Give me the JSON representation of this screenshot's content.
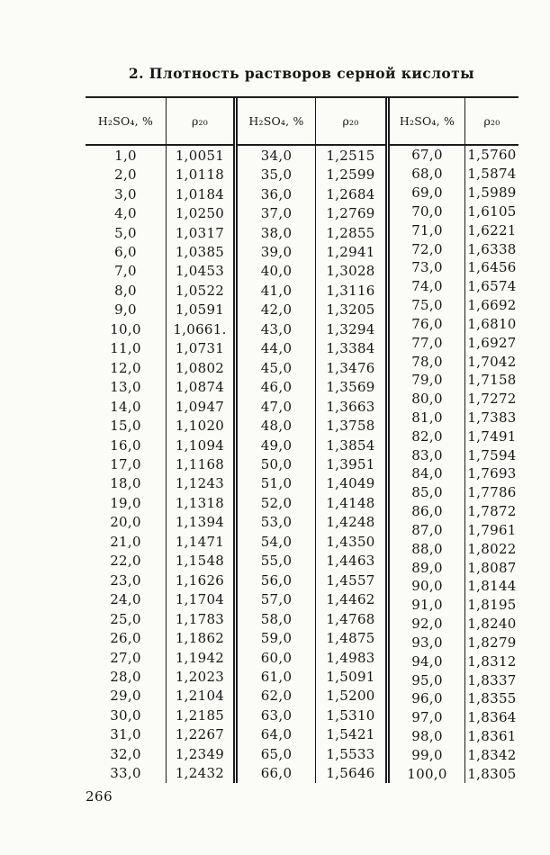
{
  "page": {
    "title": "2. Плотность растворов серной кислоты",
    "page_number": "266"
  },
  "table": {
    "headers": [
      "H₂SO₄, %",
      "ρ₂₀",
      "H₂SO₄, %",
      "ρ₂₀",
      "H₂SO₄, %",
      "ρ₂₀"
    ],
    "groups": [
      {
        "rows": [
          [
            "1,0",
            "1,0051"
          ],
          [
            "2,0",
            "1,0118"
          ],
          [
            "3,0",
            "1,0184"
          ],
          [
            "4,0",
            "1,0250"
          ],
          [
            "5,0",
            "1,0317"
          ],
          [
            "6,0",
            "1,0385"
          ],
          [
            "7,0",
            "1,0453"
          ],
          [
            "8,0",
            "1,0522"
          ],
          [
            "9,0",
            "1,0591"
          ],
          [
            "10,0",
            "1,0661."
          ],
          [
            "11,0",
            "1,0731"
          ],
          [
            "12,0",
            "1,0802"
          ],
          [
            "13,0",
            "1,0874"
          ],
          [
            "14,0",
            "1,0947"
          ],
          [
            "15,0",
            "1,1020"
          ],
          [
            "16,0",
            "1,1094"
          ],
          [
            "17,0",
            "1,1168"
          ],
          [
            "18,0",
            "1,1243"
          ],
          [
            "19,0",
            "1,1318"
          ],
          [
            "20,0",
            "1,1394"
          ],
          [
            "21,0",
            "1,1471"
          ],
          [
            "22,0",
            "1,1548"
          ],
          [
            "23,0",
            "1,1626"
          ],
          [
            "24,0",
            "1,1704"
          ],
          [
            "25,0",
            "1,1783"
          ],
          [
            "26,0",
            "1,1862"
          ],
          [
            "27,0",
            "1,1942"
          ],
          [
            "28,0",
            "1,2023"
          ],
          [
            "29,0",
            "1,2104"
          ],
          [
            "30,0",
            "1,2185"
          ],
          [
            "31,0",
            "1,2267"
          ],
          [
            "32,0",
            "1,2349"
          ],
          [
            "33,0",
            "1,2432"
          ]
        ]
      },
      {
        "rows": [
          [
            "34,0",
            "1,2515"
          ],
          [
            "35,0",
            "1,2599"
          ],
          [
            "36,0",
            "1,2684"
          ],
          [
            "37,0",
            "1,2769"
          ],
          [
            "38,0",
            "1,2855"
          ],
          [
            "39,0",
            "1,2941"
          ],
          [
            "40,0",
            "1,3028"
          ],
          [
            "41,0",
            "1,3116"
          ],
          [
            "42,0",
            "1,3205"
          ],
          [
            "43,0",
            "1,3294"
          ],
          [
            "44,0",
            "1,3384"
          ],
          [
            "45,0",
            "1,3476"
          ],
          [
            "46,0",
            "1,3569"
          ],
          [
            "47,0",
            "1,3663"
          ],
          [
            "48,0",
            "1,3758"
          ],
          [
            "49,0",
            "1,3854"
          ],
          [
            "50,0",
            "1,3951"
          ],
          [
            "51,0",
            "1,4049"
          ],
          [
            "52,0",
            "1,4148"
          ],
          [
            "53,0",
            "1,4248"
          ],
          [
            "54,0",
            "1,4350"
          ],
          [
            "55,0",
            "1,4463"
          ],
          [
            "56,0",
            "1,4557"
          ],
          [
            "57,0",
            "1,4462"
          ],
          [
            "58,0",
            "1,4768"
          ],
          [
            "59,0",
            "1,4875"
          ],
          [
            "60,0",
            "1,4983"
          ],
          [
            "61,0",
            "1,5091"
          ],
          [
            "62,0",
            "1,5200"
          ],
          [
            "63,0",
            "1,5310"
          ],
          [
            "64,0",
            "1,5421"
          ],
          [
            "65,0",
            "1,5533"
          ],
          [
            "66,0",
            "1,5646"
          ]
        ]
      },
      {
        "rows": [
          [
            "67,0",
            "1,5760"
          ],
          [
            "68,0",
            "1,5874"
          ],
          [
            "69,0",
            "1,5989"
          ],
          [
            "70,0",
            "1,6105"
          ],
          [
            "71,0",
            "1,6221"
          ],
          [
            "72,0",
            "1,6338"
          ],
          [
            "73,0",
            "1,6456"
          ],
          [
            "74,0",
            "1,6574"
          ],
          [
            "75,0",
            "1,6692"
          ],
          [
            "76,0",
            "1,6810"
          ],
          [
            "77,0",
            "1,6927"
          ],
          [
            "78,0",
            "1,7042"
          ],
          [
            "79,0",
            "1,7158"
          ],
          [
            "80,0",
            "1,7272"
          ],
          [
            "81,0",
            "1,7383"
          ],
          [
            "82,0",
            "1,7491"
          ],
          [
            "83,0",
            "1,7594"
          ],
          [
            "84,0",
            "1,7693"
          ],
          [
            "85,0",
            "1,7786"
          ],
          [
            "86,0",
            "1,7872"
          ],
          [
            "87,0",
            "1,7961"
          ],
          [
            "88,0",
            "1,8022"
          ],
          [
            "89,0",
            "1,8087"
          ],
          [
            "90,0",
            "1,8144"
          ],
          [
            "91,0",
            "1,8195"
          ],
          [
            "92,0",
            "1,8240"
          ],
          [
            "93,0",
            "1,8279"
          ],
          [
            "94,0",
            "1,8312"
          ],
          [
            "95,0",
            "1,8337"
          ],
          [
            "96,0",
            "1,8355"
          ],
          [
            "97,0",
            "1,8364"
          ],
          [
            "98,0",
            "1,8361"
          ],
          [
            "99,0",
            "1,8342"
          ],
          [
            "100,0",
            "1,8305"
          ]
        ]
      }
    ]
  }
}
